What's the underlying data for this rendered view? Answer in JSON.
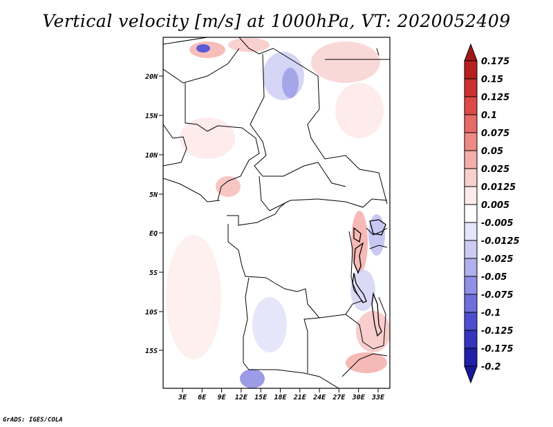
{
  "title": "Vertical velocity [m/s] at 1000hPa, VT: 2020052409",
  "credit": "GrADS: IGES/COLA",
  "map": {
    "variable": "Vertical velocity",
    "units": "m/s",
    "level": "1000hPa",
    "valid_time": "2020052409",
    "lat_ticks": [
      "20N",
      "15N",
      "10N",
      "5N",
      "EQ",
      "5S",
      "10S",
      "15S"
    ],
    "lon_ticks": [
      "3E",
      "6E",
      "9E",
      "12E",
      "15E",
      "18E",
      "21E",
      "24E",
      "27E",
      "30E",
      "33E"
    ]
  },
  "colorbar": {
    "levels": [
      "0.175",
      "0.15",
      "0.125",
      "0.1",
      "0.075",
      "0.05",
      "0.025",
      "0.0125",
      "0.005",
      "-0.005",
      "-0.0125",
      "-0.025",
      "-0.05",
      "-0.075",
      "-0.1",
      "-0.125",
      "-0.175",
      "-0.2"
    ],
    "colors": [
      "#a01818",
      "#b82020",
      "#cc3030",
      "#dd4a48",
      "#e66a66",
      "#ee8a86",
      "#f4aeaa",
      "#f8d0ce",
      "#fdeceb",
      "#ffffff",
      "#e6e6fb",
      "#cbcbf4",
      "#b0b0ee",
      "#9090e6",
      "#7070dc",
      "#4e4ed0",
      "#3434bf",
      "#2020a8",
      "#18189a"
    ]
  }
}
